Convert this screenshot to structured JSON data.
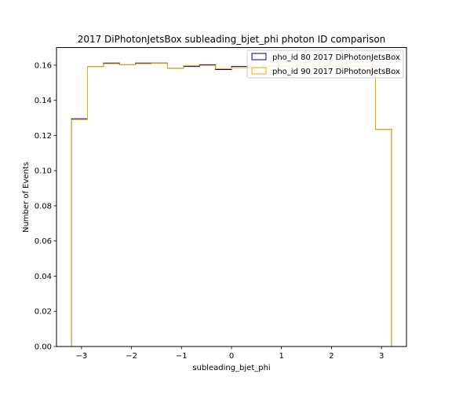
{
  "chart_data": {
    "type": "histogram",
    "title": "2017 DiPhotonJetsBox subleading_bjet_phi photon ID comparison",
    "xlabel": "subleading_bjet_phi",
    "ylabel": "Number of Events",
    "xlim": [
      -3.5,
      3.5
    ],
    "ylim": [
      0,
      0.17
    ],
    "xticks": [
      -3,
      -2,
      -1,
      0,
      1,
      2,
      3
    ],
    "yticks": [
      0.0,
      0.02,
      0.04,
      0.06,
      0.08,
      0.1,
      0.12,
      0.14,
      0.16
    ],
    "ytick_labels": [
      "0.00",
      "0.02",
      "0.04",
      "0.06",
      "0.08",
      "0.10",
      "0.12",
      "0.14",
      "0.16"
    ],
    "xtick_labels": [
      "−3",
      "−2",
      "−1",
      "0",
      "1",
      "2",
      "3"
    ],
    "bin_edges": [
      -3.2,
      -2.88,
      -2.56,
      -2.24,
      -1.92,
      -1.6,
      -1.28,
      -0.96,
      -0.64,
      -0.32,
      0.0,
      0.32,
      0.64,
      0.96,
      1.28,
      1.6,
      1.92,
      2.24,
      2.56,
      2.88,
      3.2
    ],
    "legend_position": "upper right",
    "series": [
      {
        "name": "pho_id 80 2017 DiPhotonJetsBox",
        "color": "#000080",
        "values": [
          0.1295,
          0.1592,
          0.1612,
          0.1602,
          0.1612,
          0.1612,
          0.1582,
          0.1592,
          0.1602,
          0.1575,
          0.1592,
          0.1585,
          0.1595,
          0.1595,
          0.1595,
          0.1595,
          0.1595,
          0.1595,
          0.1595,
          0.1235
        ]
      },
      {
        "name": "pho_id 90 2017 DiPhotonJetsBox",
        "color": "#ffa500",
        "values": [
          0.129,
          0.1592,
          0.1608,
          0.1602,
          0.1608,
          0.161,
          0.1582,
          0.1598,
          0.1598,
          0.158,
          0.1585,
          0.1585,
          0.1595,
          0.1595,
          0.1595,
          0.1595,
          0.1595,
          0.1595,
          0.1595,
          0.1235
        ]
      }
    ]
  }
}
